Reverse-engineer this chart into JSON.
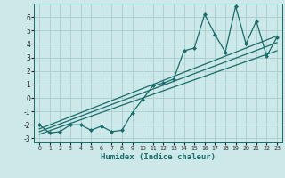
{
  "xlabel": "Humidex (Indice chaleur)",
  "bg_color": "#cce8e8",
  "grid_color": "#aacccc",
  "line_color": "#1a6b6b",
  "xlim": [
    -0.5,
    23.5
  ],
  "ylim": [
    -3.3,
    7.0
  ],
  "xticks": [
    0,
    1,
    2,
    3,
    4,
    5,
    6,
    7,
    8,
    9,
    10,
    11,
    12,
    13,
    14,
    15,
    16,
    17,
    18,
    19,
    20,
    21,
    22,
    23
  ],
  "yticks": [
    -3,
    -2,
    -1,
    0,
    1,
    2,
    3,
    4,
    5,
    6
  ],
  "data_x": [
    0,
    1,
    2,
    3,
    4,
    5,
    6,
    7,
    8,
    9,
    10,
    11,
    12,
    13,
    14,
    15,
    16,
    17,
    18,
    19,
    20,
    21,
    22,
    23
  ],
  "data_y": [
    -2.0,
    -2.6,
    -2.5,
    -2.0,
    -2.0,
    -2.4,
    -2.1,
    -2.5,
    -2.4,
    -1.1,
    -0.1,
    0.9,
    1.1,
    1.4,
    3.5,
    3.7,
    6.2,
    4.7,
    3.4,
    6.8,
    4.0,
    5.7,
    3.1,
    4.5
  ],
  "line1_x": [
    0,
    23
  ],
  "line1_y": [
    -2.3,
    4.6
  ],
  "line2_x": [
    0,
    23
  ],
  "line2_y": [
    -2.5,
    4.1
  ],
  "line3_x": [
    0,
    23
  ],
  "line3_y": [
    -2.7,
    3.5
  ]
}
